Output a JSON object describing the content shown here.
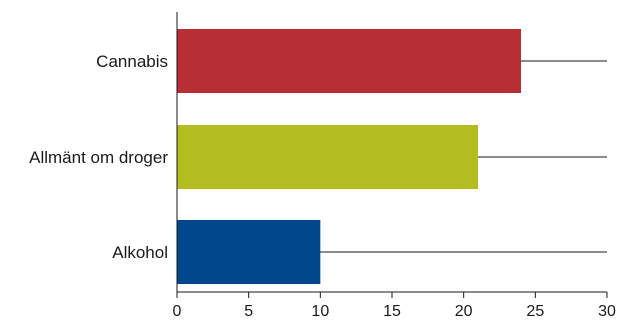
{
  "chart_data": {
    "type": "bar",
    "orientation": "horizontal",
    "categories": [
      "Cannabis",
      "Allmänt om droger",
      "Alkohol"
    ],
    "values": [
      24,
      21,
      10
    ],
    "colors": [
      "#b72e35",
      "#b3bd1f",
      "#00478b"
    ],
    "xlim": [
      0,
      30
    ],
    "xticks": [
      "0",
      "5",
      "10",
      "15",
      "20",
      "25",
      "30"
    ],
    "title": "",
    "xlabel": "",
    "ylabel": "",
    "grid": "horizontal line at each category center, extending across full axis",
    "legend": "none"
  }
}
